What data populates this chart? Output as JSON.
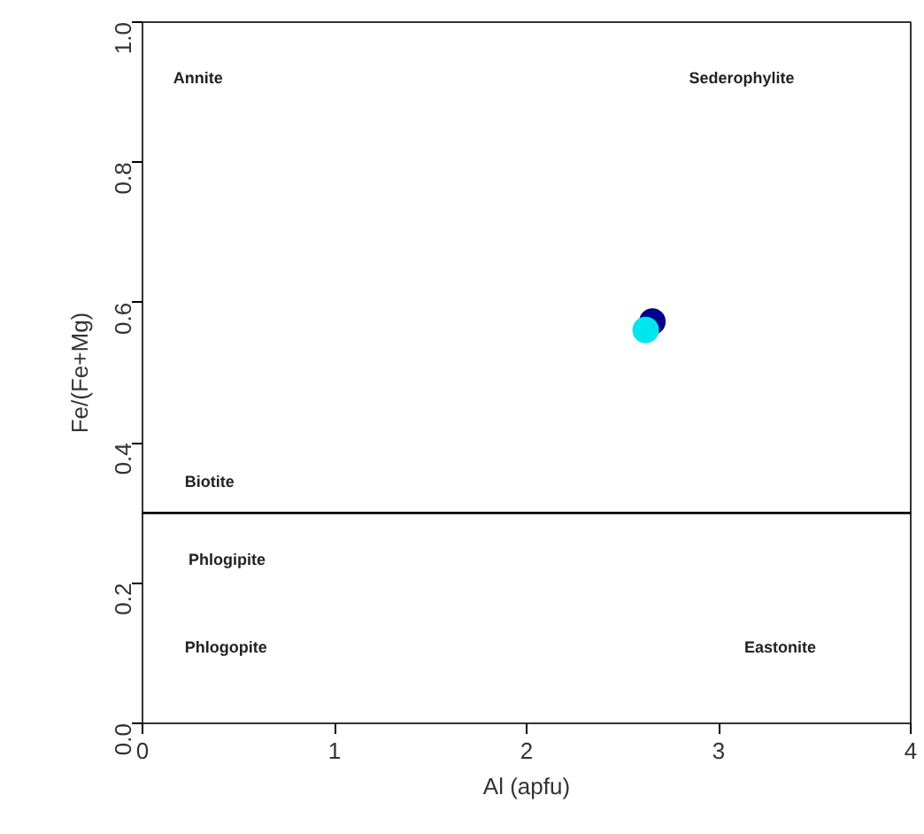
{
  "chart_data": {
    "type": "scatter",
    "xlabel": "Al (apfu)",
    "ylabel": "Fe/(Fe+Mg)",
    "xlim": [
      0,
      4
    ],
    "ylim": [
      0,
      1
    ],
    "xticks": [
      0,
      1,
      2,
      3,
      4
    ],
    "yticks": [
      {
        "value": 0,
        "label": "0.0"
      },
      0.2,
      0.4,
      0.6,
      0.8,
      {
        "value": 1,
        "label": "1.0"
      }
    ],
    "series": [
      {
        "color": "#00008b",
        "x": [
          2.655
        ],
        "values": [
          0.573
        ]
      },
      {
        "color": "#00e5ee",
        "x": [
          2.62
        ],
        "values": [
          0.561
        ]
      }
    ],
    "marker": "circle",
    "grid": false,
    "ref_lines": [
      {
        "axis": "y",
        "value": 0.3,
        "label": null,
        "color": "#000000"
      }
    ],
    "annotations": [
      "Annite",
      "Sederophylite",
      "Biotite",
      "Phlogipite",
      "Phlogopite",
      "Eastonite"
    ]
  }
}
